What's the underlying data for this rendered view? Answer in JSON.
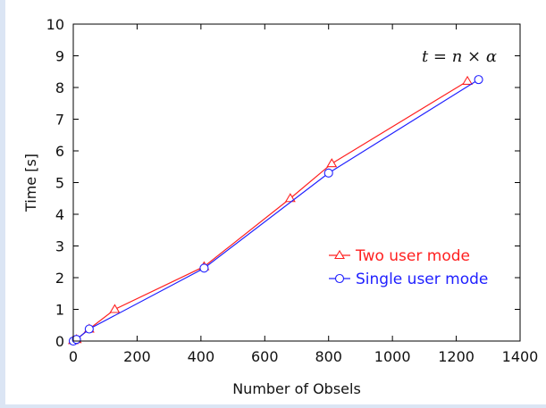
{
  "chart_data": {
    "type": "line",
    "xlabel": "Number of Obsels",
    "ylabel": "Time [s]",
    "xlim": [
      0,
      1400
    ],
    "ylim": [
      0,
      10
    ],
    "xticks": [
      0,
      200,
      400,
      600,
      800,
      1000,
      1200,
      1400
    ],
    "yticks": [
      0,
      1,
      2,
      3,
      4,
      5,
      6,
      7,
      8,
      9,
      10
    ],
    "annotation": "t = n × α",
    "legend_position": "lower-right",
    "grid": false,
    "series": [
      {
        "name": "Two user mode",
        "color": "#ff2020",
        "marker": "triangle",
        "x": [
          0,
          10,
          50,
          130,
          410,
          680,
          810,
          1235
        ],
        "y": [
          0.02,
          0.05,
          0.38,
          1.0,
          2.35,
          4.5,
          5.6,
          8.2
        ]
      },
      {
        "name": "Single user mode",
        "color": "#2020ff",
        "marker": "circle",
        "x": [
          0,
          10,
          50,
          410,
          800,
          1270
        ],
        "y": [
          0.0,
          0.05,
          0.38,
          2.3,
          5.3,
          8.25
        ]
      }
    ]
  }
}
